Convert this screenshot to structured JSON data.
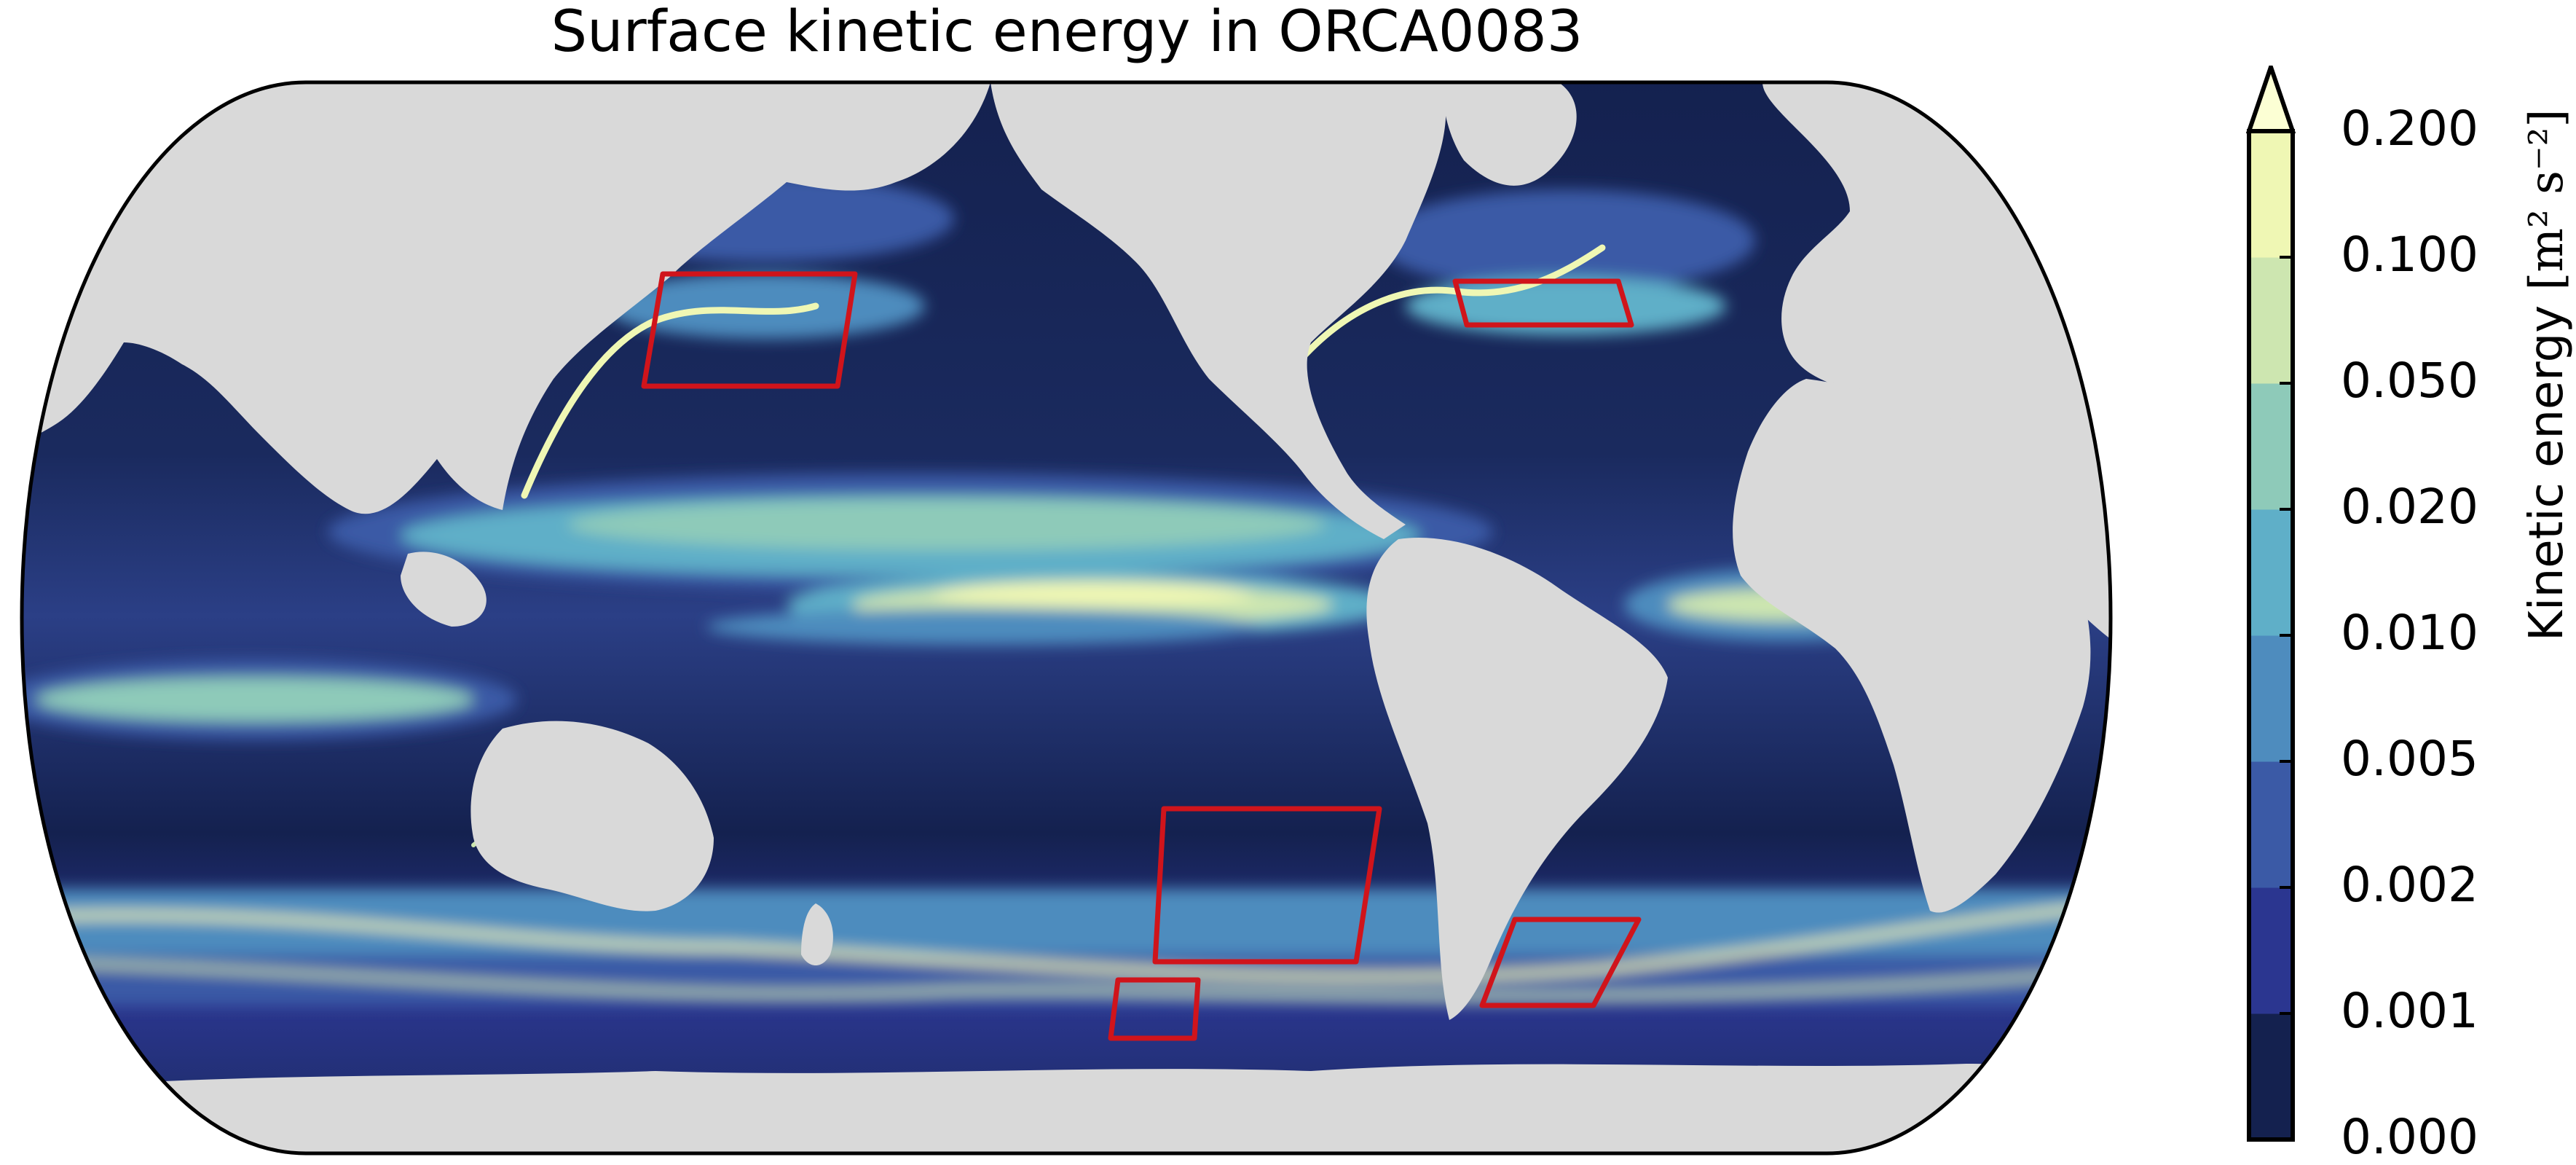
{
  "map": {
    "title": "Surface kinetic energy in ORCA0083",
    "land_color": "#d9d9d9",
    "outline_color": "#000000",
    "box_color": "#d0141b",
    "num_boxes": 5
  },
  "colorbar": {
    "label": "Kinetic energy",
    "units": "[m² s⁻²]",
    "extend": "max",
    "ticks": [
      "0.000",
      "0.001",
      "0.002",
      "0.005",
      "0.010",
      "0.020",
      "0.050",
      "0.100",
      "0.200"
    ],
    "bin_colors": [
      "#14214f",
      "#2b3690",
      "#3b5aa6",
      "#4e8cbe",
      "#5fafc8",
      "#8ecab9",
      "#cde6b0",
      "#eff7b4"
    ],
    "extend_color": "#fcffd4"
  }
}
